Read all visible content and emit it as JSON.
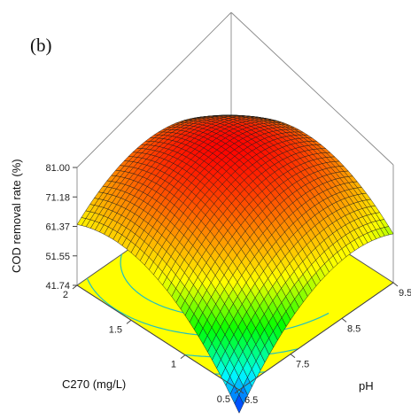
{
  "panel_label": "(b)",
  "chart_data": {
    "type": "surface3d",
    "zlabel": "COD removal rate (%)",
    "xlabel": "C270 (mg/L)",
    "ylabel": "pH",
    "z_ticks": [
      "41.74",
      "51.55",
      "61.37",
      "71.18",
      "81.00"
    ],
    "x_ticks": [
      "0.5",
      "1",
      "1.5",
      "2"
    ],
    "y_ticks": [
      "6.5",
      "7.5",
      "8.5",
      "9.5"
    ],
    "x_range": [
      0.5,
      2
    ],
    "y_range": [
      6.5,
      9.5
    ],
    "zlim": [
      41.74,
      81.0
    ],
    "surface_samples": [
      {
        "x": 0.5,
        "y": 6.5,
        "z": 34
      },
      {
        "x": 2,
        "y": 6.5,
        "z": 57
      },
      {
        "x": 0.5,
        "y": 9.5,
        "z": 56
      },
      {
        "x": 2,
        "y": 9.5,
        "z": 60
      },
      {
        "x": 1.5,
        "y": 8.6,
        "z": 81
      }
    ],
    "colormap": [
      "#0000ff",
      "#00ffff",
      "#00ff00",
      "#ffff00",
      "#ff8000",
      "#ff0000"
    ],
    "floor_color": "#ffff00",
    "contour_color": "#20c0c0"
  }
}
